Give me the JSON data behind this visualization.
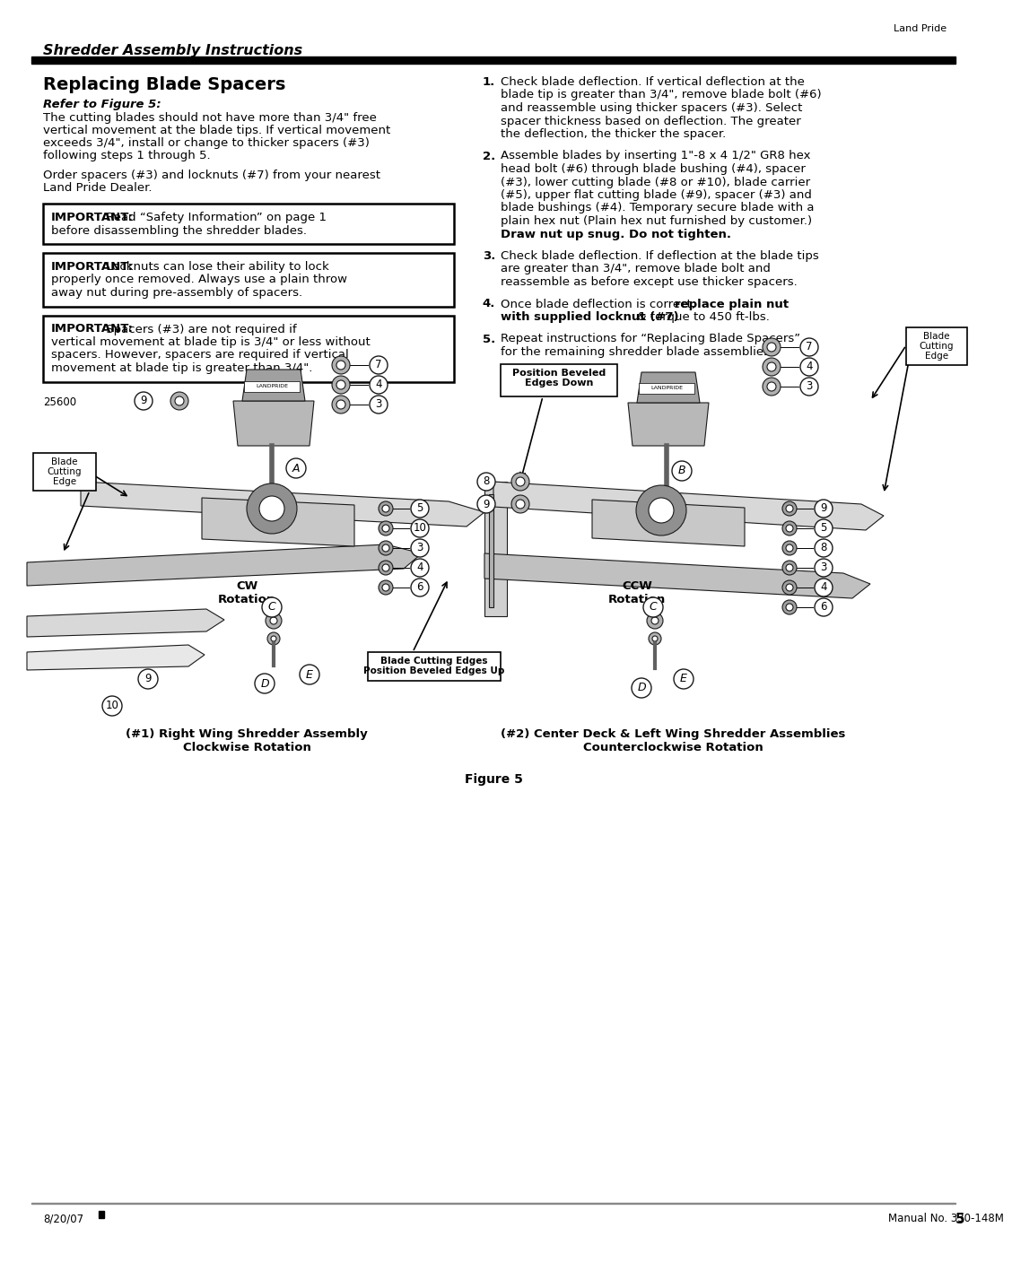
{
  "page_title": "Shredder Assembly Instructions",
  "header_right": "Land Pride",
  "section_title": "Replacing Blade Spacers",
  "refer_label": "Refer to Figure 5:",
  "intro1_lines": [
    "The cutting blades should not have more than 3/4\" free",
    "vertical movement at the blade tips. If vertical movement",
    "exceeds 3/4\", install or change to thicker spacers (#3)",
    "following steps 1 through 5."
  ],
  "intro2_lines": [
    "Order spacers (#3) and locknuts (#7) from your nearest",
    "Land Pride Dealer."
  ],
  "box1_lines": [
    [
      [
        "IMPORTANT:",
        true
      ],
      [
        " Read “Safety Information” on page 1",
        false
      ]
    ],
    [
      [
        "before disassembling the shredder blades.",
        false
      ]
    ]
  ],
  "box2_lines": [
    [
      [
        "IMPORTANT:",
        true
      ],
      [
        " Locknuts can lose their ability to lock",
        false
      ]
    ],
    [
      [
        "properly once removed. Always use a plain throw",
        false
      ]
    ],
    [
      [
        "away nut during pre-assembly of spacers.",
        false
      ]
    ]
  ],
  "box3_lines": [
    [
      [
        "IMPORTANT:",
        true
      ],
      [
        " Spacers (#3) are not required if",
        false
      ]
    ],
    [
      [
        "vertical movement at blade tip is 3/4\" or less without",
        false
      ]
    ],
    [
      [
        "spacers. However, spacers are required if vertical",
        false
      ]
    ],
    [
      [
        "movement at blade tip is greater than 3/4\".",
        false
      ]
    ]
  ],
  "part_number": "25600",
  "step1_lines": [
    [
      [
        "Check blade deflection. If vertical deflection at the",
        false
      ]
    ],
    [
      [
        "blade tip is greater than 3/4\", remove blade bolt (#6)",
        false
      ]
    ],
    [
      [
        "and reassemble using thicker spacers (#3). Select",
        false
      ]
    ],
    [
      [
        "spacer thickness based on deflection. The greater",
        false
      ]
    ],
    [
      [
        "the deflection, the thicker the spacer.",
        false
      ]
    ]
  ],
  "step2_lines": [
    [
      [
        "Assemble blades by inserting 1\"-8 x 4 1/2\" GR8 hex",
        false
      ]
    ],
    [
      [
        "head bolt (#6) through blade bushing (#4), spacer",
        false
      ]
    ],
    [
      [
        "(#3), lower cutting blade (#8 or #10), blade carrier",
        false
      ]
    ],
    [
      [
        "(#5), upper flat cutting blade (#9), spacer (#3) and",
        false
      ]
    ],
    [
      [
        "blade bushings (#4). Temporary secure blade with a",
        false
      ]
    ],
    [
      [
        "plain hex nut (Plain hex nut furnished by customer.)",
        false
      ]
    ],
    [
      [
        "Draw nut up snug. Do not tighten.",
        true
      ]
    ]
  ],
  "step3_lines": [
    [
      [
        "Check blade deflection. If deflection at the blade tips",
        false
      ]
    ],
    [
      [
        "are greater than 3/4\", remove blade bolt and",
        false
      ]
    ],
    [
      [
        "reassemble as before except use thicker spacers.",
        false
      ]
    ]
  ],
  "step4_lines": [
    [
      [
        "Once blade deflection is correct, ",
        false
      ],
      [
        "replace plain nut",
        true
      ]
    ],
    [
      [
        "with supplied locknut (#7)",
        true
      ],
      [
        " & torque to 450 ft-lbs.",
        false
      ]
    ]
  ],
  "step5_lines": [
    [
      [
        "Repeat instructions for “Replacing Blade Spacers”",
        false
      ]
    ],
    [
      [
        "for the remaining shredder blade assemblies.",
        false
      ]
    ]
  ],
  "caption1": "(#1) Right Wing Shredder Assembly\nClockwise Rotation",
  "caption2": "(#2) Center Deck & Left Wing Shredder Assemblies\nCounterclockwise Rotation",
  "figure_label": "Figure 5",
  "footer_left": "8/20/07",
  "footer_right": "Manual No. 330-148M",
  "footer_page": "5",
  "bg_color": "#ffffff",
  "text_color": "#000000"
}
